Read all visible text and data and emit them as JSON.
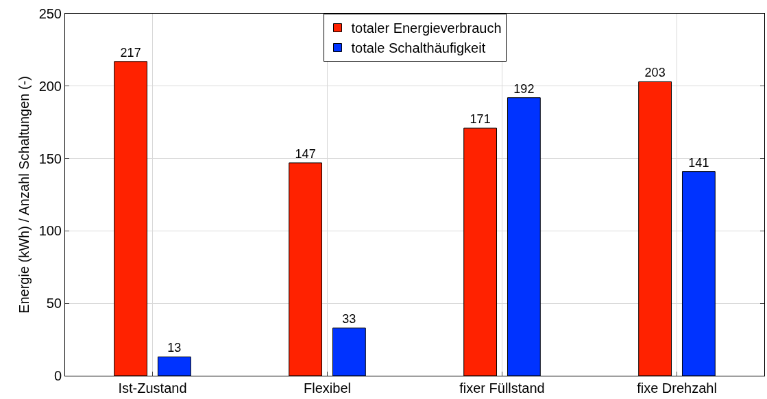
{
  "chart_data": {
    "type": "bar",
    "ylabel": "Energie (kWh) / Anzahl Schaltungen (-)",
    "categories": [
      "Ist-Zustand",
      "Flexibel",
      "fixer Füllstand",
      "fixe Drehzahl"
    ],
    "series": [
      {
        "name": "totaler Energieverbrauch",
        "color": "#ff2200",
        "values": [
          217,
          147,
          171,
          203
        ]
      },
      {
        "name": "totale Schalthäufigkeit",
        "color": "#0033ff",
        "values": [
          13,
          33,
          192,
          141
        ]
      }
    ],
    "ylim": [
      0,
      250
    ],
    "yticks": [
      0,
      50,
      100,
      150,
      200,
      250
    ],
    "grid": true,
    "legend": "top",
    "data_labels": true
  }
}
